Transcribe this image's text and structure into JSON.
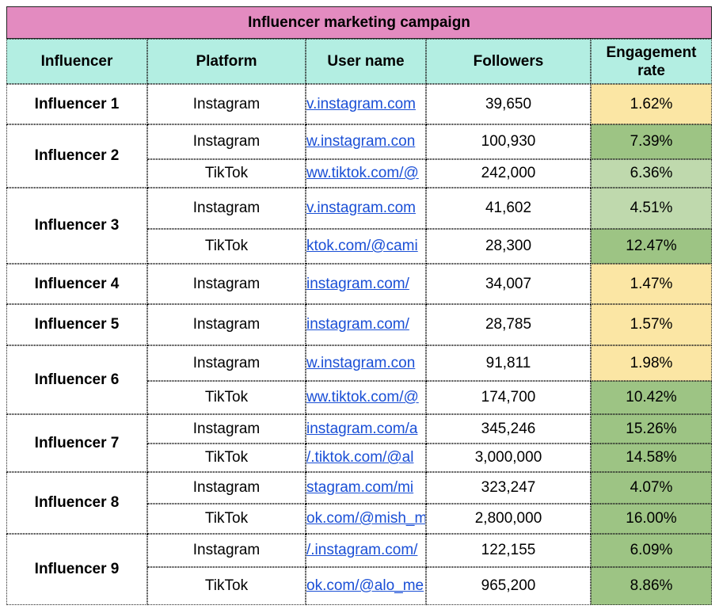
{
  "title": "Influencer marketing campaign",
  "headers": {
    "influencer": "Influencer",
    "platform": "Platform",
    "username": "User name",
    "followers": "Followers",
    "engagement": "Engagement rate"
  },
  "colors": {
    "title_bg": "#e38bc0",
    "header_bg": "#b3eee2",
    "rate_low": "#fbe6a4",
    "rate_mid": "#bfd9ad",
    "rate_high": "#9dc484",
    "link": "#1a4fd6"
  },
  "influencers": [
    {
      "name": "Influencer 1",
      "rows": [
        {
          "platform": "Instagram",
          "user": "v.instagram.com",
          "followers": "39,650",
          "rate": "1.62%",
          "tier": "low"
        }
      ]
    },
    {
      "name": "Influencer 2",
      "rows": [
        {
          "platform": "Instagram",
          "user": "w.instagram.con",
          "followers": "100,930",
          "rate": "7.39%",
          "tier": "high"
        },
        {
          "platform": "TikTok",
          "user": "ww.tiktok.com/@",
          "followers": "242,000",
          "rate": "6.36%",
          "tier": "mid"
        }
      ]
    },
    {
      "name": "Influencer 3",
      "rows": [
        {
          "platform": "Instagram",
          "user": "v.instagram.com",
          "followers": "41,602",
          "rate": "4.51%",
          "tier": "mid"
        },
        {
          "platform": "TikTok",
          "user": "ktok.com/@cami",
          "followers": "28,300",
          "rate": "12.47%",
          "tier": "high"
        }
      ]
    },
    {
      "name": "Influencer 4",
      "rows": [
        {
          "platform": "Instagram",
          "user": "instagram.com/",
          "followers": "34,007",
          "rate": "1.47%",
          "tier": "low"
        }
      ]
    },
    {
      "name": "Influencer 5",
      "rows": [
        {
          "platform": "Instagram",
          "user": "instagram.com/",
          "followers": "28,785",
          "rate": "1.57%",
          "tier": "low"
        }
      ]
    },
    {
      "name": "Influencer 6",
      "rows": [
        {
          "platform": "Instagram",
          "user": "w.instagram.con",
          "followers": "91,811",
          "rate": "1.98%",
          "tier": "low"
        },
        {
          "platform": "TikTok",
          "user": "ww.tiktok.com/@",
          "followers": "174,700",
          "rate": "10.42%",
          "tier": "high"
        }
      ]
    },
    {
      "name": "Influencer 7",
      "rows": [
        {
          "platform": "Instagram",
          "user": "instagram.com/a",
          "followers": "345,246",
          "rate": "15.26%",
          "tier": "high"
        },
        {
          "platform": "TikTok",
          "user": "/.tiktok.com/@al",
          "followers": "3,000,000",
          "rate": "14.58%",
          "tier": "high"
        }
      ]
    },
    {
      "name": "Influencer 8",
      "rows": [
        {
          "platform": "Instagram",
          "user": "stagram.com/mi",
          "followers": "323,247",
          "rate": "4.07%",
          "tier": "high"
        },
        {
          "platform": "TikTok",
          "user": "ok.com/@mish_m",
          "followers": "2,800,000",
          "rate": "16.00%",
          "tier": "high"
        }
      ]
    },
    {
      "name": "Influencer 9",
      "rows": [
        {
          "platform": "Instagram",
          "user": "/.instagram.com/",
          "followers": "122,155",
          "rate": "6.09%",
          "tier": "high"
        },
        {
          "platform": "TikTok",
          "user": "ok.com/@alo_me",
          "followers": "965,200",
          "rate": "8.86%",
          "tier": "high"
        }
      ]
    }
  ]
}
